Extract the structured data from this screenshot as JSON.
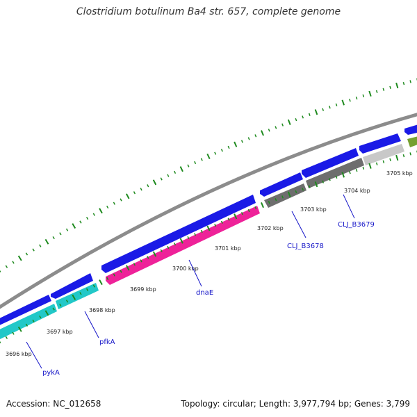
{
  "title": "Clostridium botulinum Ba4 str. 657, complete genome",
  "footer": {
    "accession": "Accession: NC_012658",
    "summary": "Topology: circular; Length: 3,977,794 bp; Genes: 3,799"
  },
  "colors": {
    "backbone": "#8c8c8c",
    "forward_cds": "#1a1ae6",
    "reverse_cds_cyan": "#22c8c8",
    "reverse_cds_magenta": "#ee2299",
    "reverse_cds_gray": "#6e6e6e",
    "reverse_cds_lightgray": "#c8c8c8",
    "olive_feature": "#76a030",
    "tick": "#1e8a1e",
    "gene_label": "#1515c8"
  },
  "ticks": [
    {
      "label": "3696 kbp"
    },
    {
      "label": "3697 kbp"
    },
    {
      "label": "3698 kbp"
    },
    {
      "label": "3699 kbp"
    },
    {
      "label": "3700 kbp"
    },
    {
      "label": "3701 kbp"
    },
    {
      "label": "3702 kbp"
    },
    {
      "label": "3703 kbp"
    },
    {
      "label": "3704 kbp"
    },
    {
      "label": "3705 kbp"
    }
  ],
  "gene_labels": [
    {
      "label": "pykA"
    },
    {
      "label": "pfkA"
    },
    {
      "label": "dnaE"
    },
    {
      "label": "CLJ_B3678"
    },
    {
      "label": "CLJ_B3679"
    }
  ]
}
